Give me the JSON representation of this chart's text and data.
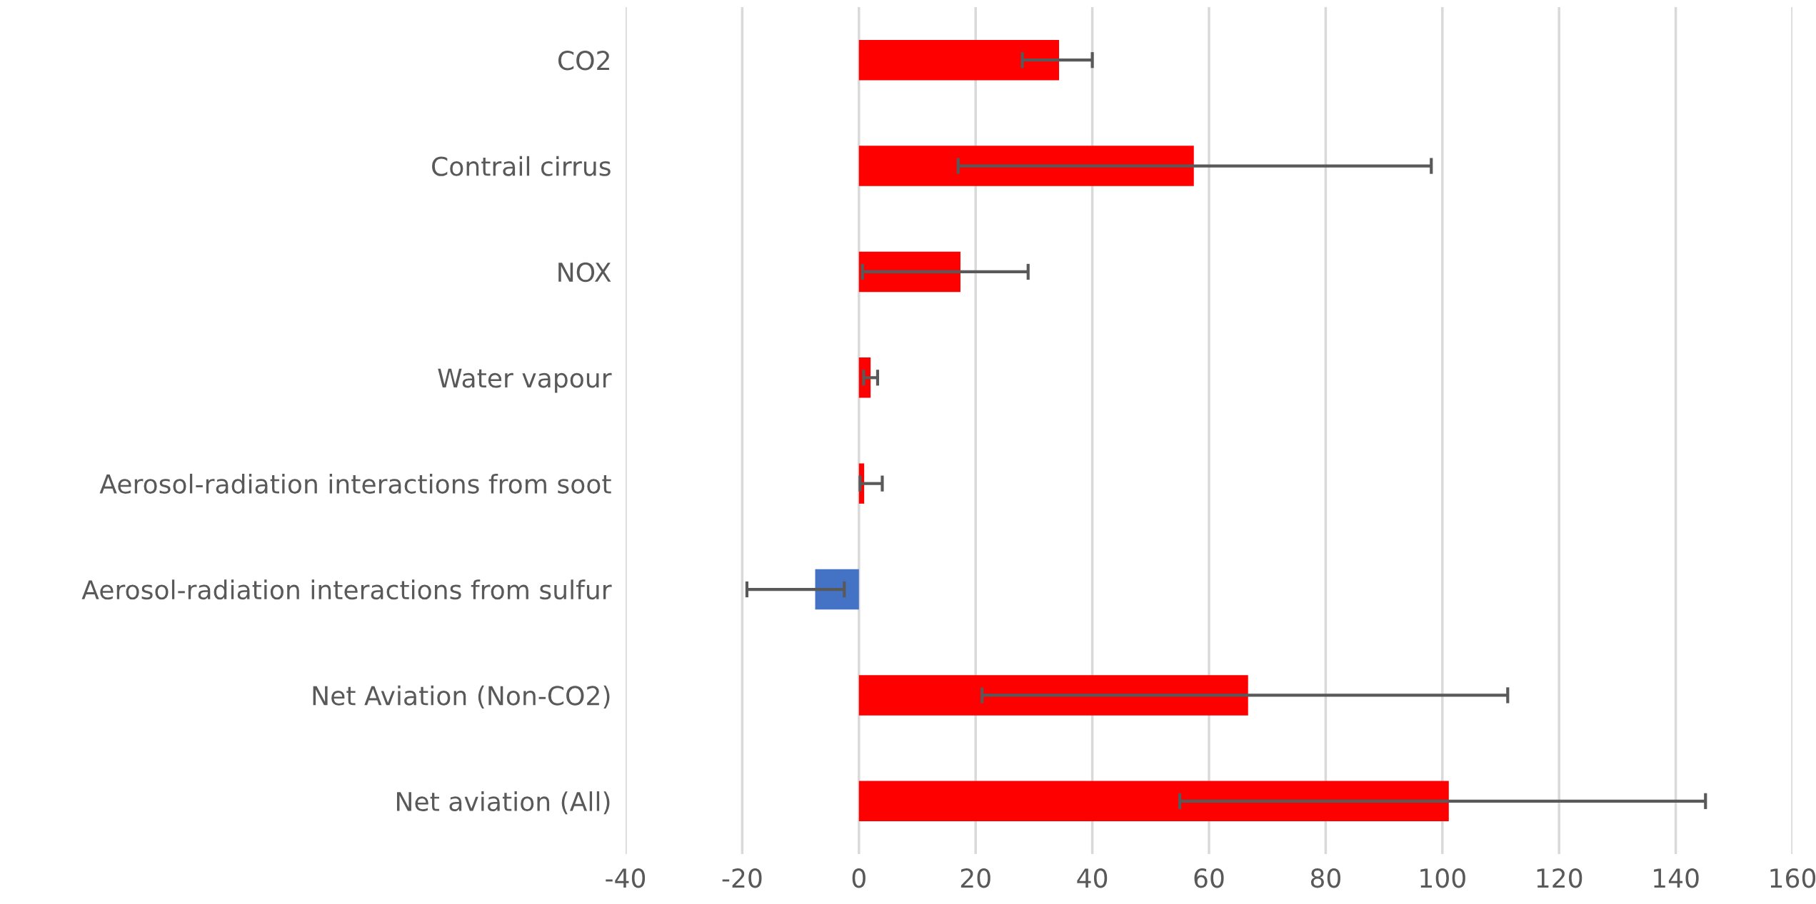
{
  "chart_data": {
    "type": "bar",
    "orientation": "horizontal",
    "categories": [
      "CO2",
      "Contrail cirrus",
      "NOX",
      "Water vapour",
      "Aerosol-radiation interactions from soot",
      "Aerosol-radiation interactions from sulfur",
      "Net Aviation (Non-CO2)",
      "Net aviation (All)"
    ],
    "values": [
      34.3,
      57.4,
      17.4,
      2.0,
      0.9,
      -7.5,
      66.7,
      101.1
    ],
    "colors": [
      "#ff0000",
      "#ff0000",
      "#ff0000",
      "#ff0000",
      "#ff0000",
      "#4472c4",
      "#ff0000",
      "#ff0000"
    ],
    "errors": [
      [
        28.0,
        40.0
      ],
      [
        17.0,
        98.1
      ],
      [
        0.6,
        29.0
      ],
      [
        0.8,
        3.2
      ],
      [
        0.2,
        4.0
      ],
      [
        -19.2,
        -2.5
      ],
      [
        21.1,
        111.2
      ],
      [
        55.0,
        145.1
      ]
    ],
    "xlim": [
      -40,
      160
    ],
    "xticks": [
      -40,
      -20,
      0,
      20,
      40,
      60,
      80,
      100,
      120,
      140,
      160
    ],
    "grid": "x"
  }
}
